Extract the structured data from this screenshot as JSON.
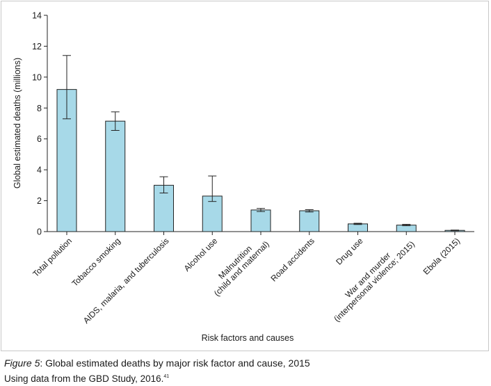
{
  "chart_data": {
    "type": "bar",
    "categories": [
      "Total pollution",
      "Tobacco smoking",
      "AIDS, malaria, and tuberculosis",
      "Alcohol use",
      [
        "Malnutrition",
        "(child and maternal)"
      ],
      "Road accidents",
      "Drug use",
      [
        "War and murder",
        "(interpersonal violence; 2015)"
      ],
      "Ebola (2015)"
    ],
    "values": [
      9.2,
      7.15,
      3.0,
      2.3,
      1.4,
      1.35,
      0.5,
      0.42,
      0.08
    ],
    "error_low": [
      7.3,
      6.55,
      2.5,
      1.95,
      1.3,
      1.27,
      0.46,
      0.38,
      0.06
    ],
    "error_high": [
      11.4,
      7.75,
      3.55,
      3.6,
      1.5,
      1.42,
      0.54,
      0.47,
      0.1
    ],
    "xlabel": "Risk factors and causes",
    "ylabel": "Global estimated deaths (millions)",
    "ylim": [
      0,
      14
    ],
    "yticks": [
      0,
      2,
      4,
      6,
      8,
      10,
      12,
      14
    ],
    "grid": false,
    "bar_color": "#a7d9e8",
    "bar_edge_color": "#222222"
  },
  "caption": {
    "figure_label": "Figure 5",
    "title": ": Global estimated deaths by major risk factor and cause, 2015",
    "source_text": "Using data from the GBD Study, 2016.",
    "reference": "41"
  }
}
